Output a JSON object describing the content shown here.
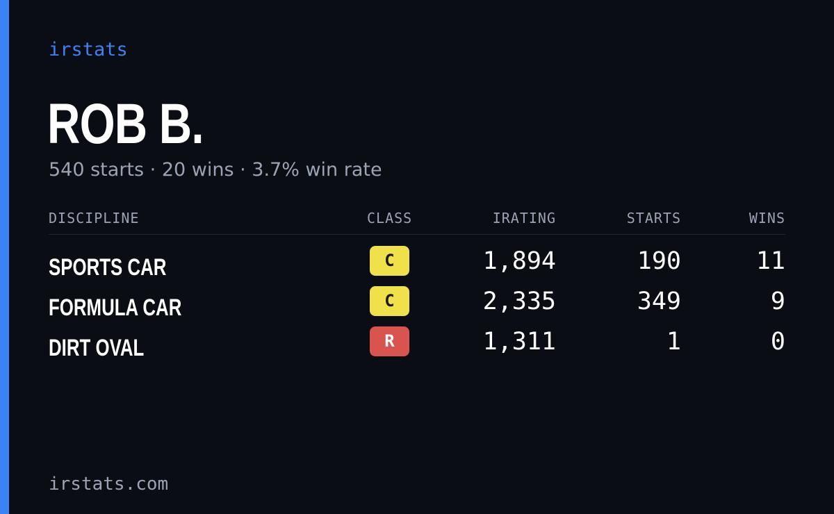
{
  "brand": "irstats",
  "profile": {
    "name": "ROB B.",
    "summary": "540 starts · 20 wins · 3.7% win rate"
  },
  "table": {
    "headers": {
      "discipline": "DISCIPLINE",
      "class": "CLASS",
      "irating": "IRATING",
      "starts": "STARTS",
      "wins": "WINS"
    },
    "rows": [
      {
        "discipline": "SPORTS CAR",
        "class": "C",
        "class_color": "#f0e04a",
        "class_text_color": "#1a1a1a",
        "irating": "1,894",
        "starts": "190",
        "wins": "11"
      },
      {
        "discipline": "FORMULA CAR",
        "class": "C",
        "class_color": "#f0e04a",
        "class_text_color": "#1a1a1a",
        "irating": "2,335",
        "starts": "349",
        "wins": "9"
      },
      {
        "discipline": "DIRT OVAL",
        "class": "R",
        "class_color": "#d9534f",
        "class_text_color": "#ffffff",
        "irating": "1,311",
        "starts": "1",
        "wins": "0"
      }
    ]
  },
  "footer": "irstats.com",
  "colors": {
    "background": "#0a0d14",
    "accent": "#3b82f6",
    "muted_text": "#9ca3b5"
  }
}
